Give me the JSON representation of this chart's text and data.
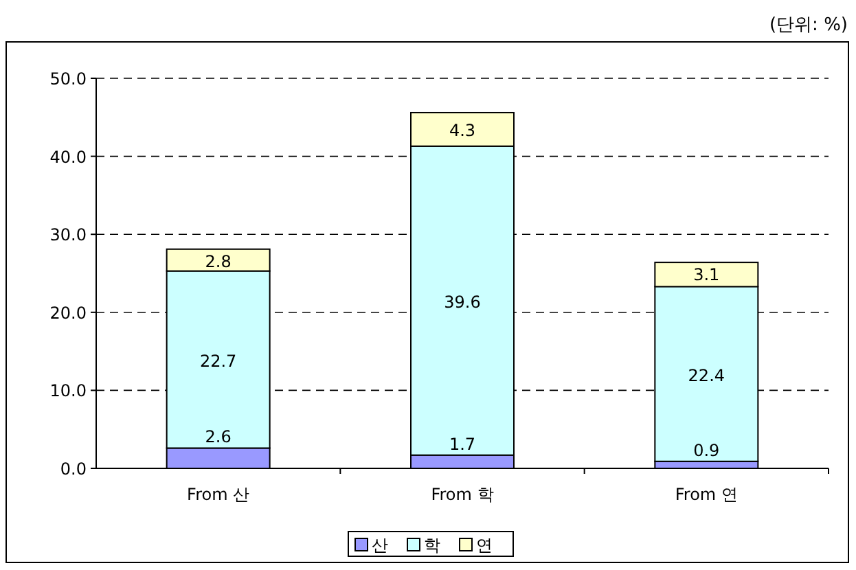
{
  "chart_data": {
    "type": "bar",
    "stacked": true,
    "annotations": [
      "(단위: %)"
    ],
    "categories": [
      "From 산",
      "From 학",
      "From 연"
    ],
    "series": [
      {
        "name": "산",
        "color": "#9999ff",
        "values": [
          2.6,
          1.7,
          0.9
        ]
      },
      {
        "name": "학",
        "color": "#ccffff",
        "values": [
          22.7,
          39.6,
          22.4
        ]
      },
      {
        "name": "연",
        "color": "#ffffcc",
        "values": [
          2.8,
          4.3,
          3.1
        ]
      }
    ],
    "ylim": [
      0,
      50
    ],
    "yticks": [
      {
        "value": 0,
        "label": "0.0"
      },
      {
        "value": 10,
        "label": "10.0"
      },
      {
        "value": 20,
        "label": "20.0"
      },
      {
        "value": 30,
        "label": "30.0"
      },
      {
        "value": 40,
        "label": "40.0"
      },
      {
        "value": 50,
        "label": "50.0"
      }
    ],
    "grid": "y",
    "data_labels": true,
    "legend": "bottom"
  }
}
